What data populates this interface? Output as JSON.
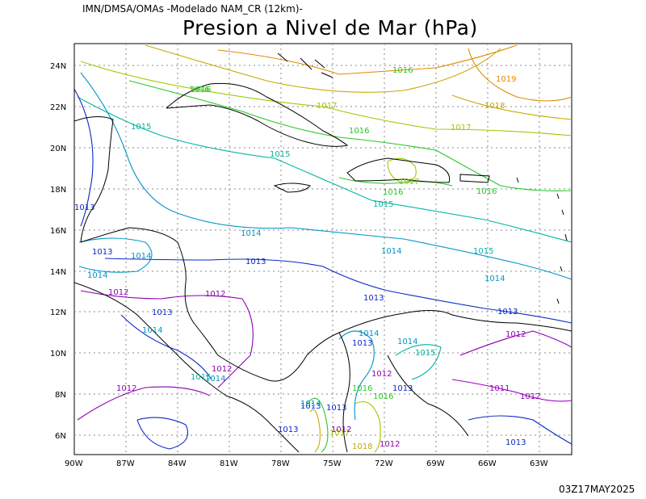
{
  "header": {
    "source": "IMN/DMSA/OMAs -Modelado NAM_CR (12km)-",
    "title": "Presion a Nivel de Mar (hPa)"
  },
  "footer": {
    "timestamp": "03Z17MAY2025"
  },
  "map": {
    "lat_labels": [
      "24N",
      "22N",
      "20N",
      "18N",
      "16N",
      "14N",
      "12N",
      "10N",
      "8N",
      "6N"
    ],
    "lon_labels": [
      "90W",
      "87W",
      "84W",
      "81W",
      "78W",
      "75W",
      "72W",
      "69W",
      "66W",
      "63W"
    ],
    "colors": {
      "1011": "#a000c0",
      "1012": "#8c00b4",
      "1013": "#0a28c8",
      "1014": "#0096c8",
      "1015": "#00b4a0",
      "1016": "#28c828",
      "1017": "#a0c800",
      "1018": "#c8a800",
      "1019": "#e08c00"
    },
    "contour_labels": [
      {
        "text": "1016"
      },
      {
        "text": "1019"
      },
      {
        "text": "1018"
      },
      {
        "text": "1017"
      },
      {
        "text": "1016"
      },
      {
        "text": "1017"
      },
      {
        "text": "1016"
      },
      {
        "text": "1015"
      },
      {
        "text": "1015"
      },
      {
        "text": "1016"
      },
      {
        "text": "1017"
      },
      {
        "text": "1016"
      },
      {
        "text": "1016"
      },
      {
        "text": "1015"
      },
      {
        "text": "1013"
      },
      {
        "text": "1014"
      },
      {
        "text": "1014"
      },
      {
        "text": "1015"
      },
      {
        "text": "1013"
      },
      {
        "text": "1014"
      },
      {
        "text": "1014"
      },
      {
        "text": "1013"
      },
      {
        "text": "1012"
      },
      {
        "text": "1012"
      },
      {
        "text": "1014"
      },
      {
        "text": "1013"
      },
      {
        "text": "1013"
      },
      {
        "text": "1013"
      },
      {
        "text": "1012"
      },
      {
        "text": "1014"
      },
      {
        "text": "1013"
      },
      {
        "text": "1014"
      },
      {
        "text": "1015"
      },
      {
        "text": "1014"
      },
      {
        "text": "1012"
      },
      {
        "text": "1015"
      },
      {
        "text": "1014"
      },
      {
        "text": "1012"
      },
      {
        "text": "1013"
      },
      {
        "text": "1012"
      },
      {
        "text": "1016"
      },
      {
        "text": "1013"
      },
      {
        "text": "1016"
      },
      {
        "text": "1011"
      },
      {
        "text": "1012"
      },
      {
        "text": "1014"
      },
      {
        "text": "1013"
      },
      {
        "text": "1017"
      },
      {
        "text": "1013"
      },
      {
        "text": "1012"
      },
      {
        "text": "1018"
      },
      {
        "text": "1012"
      },
      {
        "text": "1013"
      }
    ]
  }
}
